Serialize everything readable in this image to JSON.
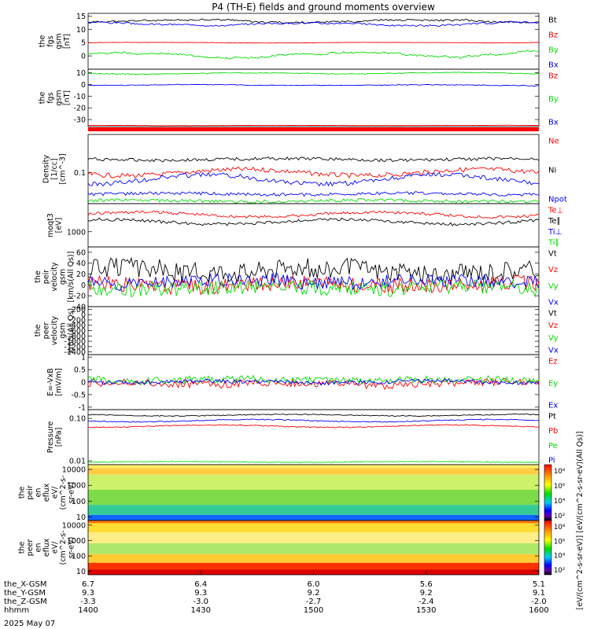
{
  "title": "P4 (TH-E) fields and ground moments overview",
  "date_label": "2025 May 07",
  "chart_data": [
    {
      "type": "line",
      "ylabel": [
        "the",
        "fgs",
        "gsm",
        "[nT]"
      ],
      "ylim": [
        -5,
        16
      ],
      "yticks": [
        15,
        10,
        5,
        0
      ],
      "series": [
        {
          "name": "Bt",
          "color": "#000000",
          "base": 13.2,
          "amp": 0.8,
          "noise": 0.3,
          "seed": 11
        },
        {
          "name": "Bz",
          "color": "#ff0000",
          "base": 5.0,
          "amp": 0.15,
          "noise": 0.05,
          "seed": 12
        },
        {
          "name": "By",
          "color": "#00dd00",
          "base": 0.5,
          "amp": 1.2,
          "noise": 0.3,
          "seed": 13
        },
        {
          "name": "Bx",
          "color": "#0000ff",
          "base": 12.0,
          "amp": 0.8,
          "noise": 0.3,
          "seed": 14
        }
      ]
    },
    {
      "type": "line",
      "ylabel": [
        "the",
        "fgs",
        "gsm",
        "[nT]"
      ],
      "ylim": [
        -36,
        13
      ],
      "yticks": [
        10,
        0,
        -10,
        -20,
        -30
      ],
      "series": [
        {
          "name": "Bz",
          "color": "#ff0000",
          "base": -35.0,
          "amp": 0.2,
          "noise": 0.05,
          "seed": 21
        },
        {
          "name": "By",
          "color": "#00dd00",
          "base": 9.5,
          "amp": 0.8,
          "noise": 0.3,
          "seed": 22
        },
        {
          "name": "Bx",
          "color": "#0000ff",
          "base": -0.5,
          "amp": 0.6,
          "noise": 0.3,
          "seed": 23
        }
      ]
    },
    {
      "type": "line",
      "ylabel": [
        "Density",
        "[1/cc]",
        "[cm^-3]"
      ],
      "ytick_labels": [
        {
          "label": "0.1",
          "frac": 0.55
        }
      ],
      "series": [
        {
          "name": "Ne",
          "color": "#ff0000"
        },
        {
          "name": "Ni",
          "color": "#000000"
        },
        {
          "name": "Npot",
          "color": "#0000ff"
        }
      ]
    },
    {
      "type": "line",
      "ylabel": [
        "moqt3",
        "[eV]"
      ],
      "ytick_labels": [
        {
          "label": "1000",
          "frac": 0.65
        }
      ],
      "series": [
        {
          "name": "Te⊥",
          "color": "#ff0000"
        },
        {
          "name": "Te∥",
          "color": "#000000"
        },
        {
          "name": "Ti⊥",
          "color": "#0000ff"
        },
        {
          "name": "Ti∥",
          "color": "#00dd00"
        }
      ]
    },
    {
      "type": "line",
      "ylabel": [
        "the",
        "peir",
        "velocity",
        "gsm",
        "[km/s(All Qs)]"
      ],
      "ylim": [
        -40,
        70
      ],
      "yticks": [
        60,
        40,
        20,
        0,
        -20,
        -40
      ],
      "series": [
        {
          "name": "Vt",
          "color": "#000000",
          "base": 25,
          "amp": 10,
          "noise": 18,
          "seed": 51
        },
        {
          "name": "Vz",
          "color": "#ff0000",
          "base": 0,
          "amp": 6,
          "noise": 14,
          "seed": 52
        },
        {
          "name": "Vy",
          "color": "#00dd00",
          "base": -5,
          "amp": 6,
          "noise": 14,
          "seed": 53
        },
        {
          "name": "Vx",
          "color": "#0000ff",
          "base": 5,
          "amp": 6,
          "noise": 12,
          "seed": 54
        }
      ]
    },
    {
      "type": "line",
      "ylabel": [
        "the",
        "peer",
        "velocity",
        "gsm",
        "km/s(All Qs)"
      ],
      "ylim": [
        -1500,
        300
      ],
      "yticks": [
        200,
        0,
        -200,
        -400,
        -600,
        -800,
        -1000,
        -1200,
        -1400
      ],
      "series": [
        {
          "name": "Vt",
          "color": "#000000"
        },
        {
          "name": "Vz",
          "color": "#ff0000"
        },
        {
          "name": "Vy",
          "color": "#00dd00"
        },
        {
          "name": "Vx",
          "color": "#0000ff"
        }
      ]
    },
    {
      "type": "line",
      "ylabel": [
        "E=-VxB",
        "[mV/m]"
      ],
      "ylim": [
        -1.1,
        1.1
      ],
      "yticks": [
        1.0,
        0.5,
        0.0,
        -0.5,
        -1.0
      ],
      "series": [
        {
          "name": "Ez",
          "color": "#ff0000",
          "base": -0.05,
          "amp": 0.08,
          "noise": 0.15,
          "seed": 71
        },
        {
          "name": "Ey",
          "color": "#00dd00",
          "base": 0.08,
          "amp": 0.08,
          "noise": 0.15,
          "seed": 72
        },
        {
          "name": "Ex",
          "color": "#0000ff",
          "base": 0.0,
          "amp": 0.05,
          "noise": 0.08,
          "seed": 73
        }
      ]
    },
    {
      "type": "line",
      "ylabel": [
        "Pressure",
        "[nPa]"
      ],
      "ytick_labels": [
        {
          "label": "0.10",
          "frac": 0.16
        },
        {
          "label": "0.01",
          "frac": 0.93
        }
      ],
      "series": [
        {
          "name": "Pt",
          "color": "#000000"
        },
        {
          "name": "Pb",
          "color": "#ff0000"
        },
        {
          "name": "Pe",
          "color": "#00dd00"
        },
        {
          "name": "Pi",
          "color": "#0000ff"
        }
      ]
    },
    {
      "type": "heatmap",
      "ylabel": [
        "the",
        "peir",
        "en",
        "eflux",
        "eV/",
        "(cm^2-s-",
        "sr-eV)"
      ],
      "yscale": "log",
      "ylim": [
        6,
        20000
      ],
      "yticks": [
        10000,
        1000,
        100,
        10
      ],
      "colorbar_ticks": [
        "10⁸",
        "10⁶",
        "10⁴",
        "10²"
      ]
    },
    {
      "type": "heatmap",
      "ylabel": [
        "the",
        "peer",
        "en",
        "eflux",
        "eV/",
        "(cm^2-s-",
        "sr-eV)"
      ],
      "yscale": "log",
      "ylim": [
        6,
        20000
      ],
      "yticks": [
        10000,
        1000,
        100,
        10
      ],
      "colorbar_ticks": [
        "10⁸",
        "10⁶",
        "10⁴",
        "10²"
      ]
    }
  ],
  "colorbar_label": "[eV/(cm^2-s-sr-eV)] [eV/(cm^2-s-sr-eV)(All Qs)]",
  "x_axis": {
    "rows": [
      {
        "label": "the_X-GSM",
        "values": [
          "6.7",
          "6.4",
          "6.0",
          "5.6",
          "5.1"
        ]
      },
      {
        "label": "the_Y-GSM",
        "values": [
          "9.3",
          "9.3",
          "9.2",
          "9.2",
          "9.1"
        ]
      },
      {
        "label": "the_Z-GSM",
        "values": [
          "-3.3",
          "-3.0",
          "-2.7",
          "-2.4",
          "-2.0"
        ]
      },
      {
        "label": "hhmm",
        "values": [
          "1400",
          "1430",
          "1500",
          "1530",
          "1600"
        ]
      }
    ]
  }
}
